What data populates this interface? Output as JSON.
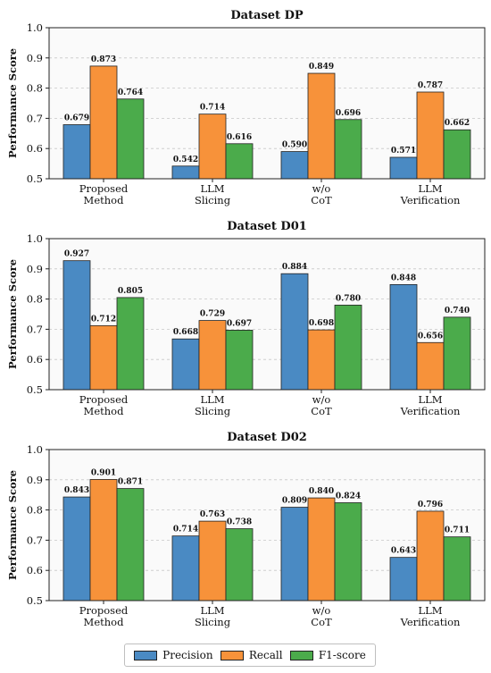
{
  "colors": {
    "precision": "#4a8ac3",
    "recall": "#f7923a",
    "f1": "#4bab4b"
  },
  "legend": [
    {
      "label": "Precision",
      "color": "#4a8ac3"
    },
    {
      "label": "Recall",
      "color": "#f7923a"
    },
    {
      "label": "F1-score",
      "color": "#4bab4b"
    }
  ],
  "chart_data": [
    {
      "type": "bar",
      "title": "Dataset DP",
      "ylabel": "Performance Score",
      "ylim": [
        0.5,
        1.0
      ],
      "yticks": [
        "0.5",
        "0.6",
        "0.7",
        "0.8",
        "0.9",
        "1.0"
      ],
      "categories": [
        [
          "Proposed",
          "Method"
        ],
        [
          "LLM",
          "Slicing"
        ],
        [
          "w/o",
          "CoT"
        ],
        [
          "LLM",
          "Verification"
        ]
      ],
      "series": [
        {
          "name": "Precision",
          "values": [
            0.679,
            0.542,
            0.59,
            0.571
          ],
          "labels": [
            "0.679",
            "0.542",
            "0.590",
            "0.571"
          ]
        },
        {
          "name": "Recall",
          "values": [
            0.873,
            0.714,
            0.849,
            0.787
          ],
          "labels": [
            "0.873",
            "0.714",
            "0.849",
            "0.787"
          ]
        },
        {
          "name": "F1-score",
          "values": [
            0.764,
            0.616,
            0.696,
            0.662
          ],
          "labels": [
            "0.764",
            "0.616",
            "0.696",
            "0.662"
          ]
        }
      ],
      "grid": true
    },
    {
      "type": "bar",
      "title": "Dataset D01",
      "ylabel": "Performance Score",
      "ylim": [
        0.5,
        1.0
      ],
      "yticks": [
        "0.5",
        "0.6",
        "0.7",
        "0.8",
        "0.9",
        "1.0"
      ],
      "categories": [
        [
          "Proposed",
          "Method"
        ],
        [
          "LLM",
          "Slicing"
        ],
        [
          "w/o",
          "CoT"
        ],
        [
          "LLM",
          "Verification"
        ]
      ],
      "series": [
        {
          "name": "Precision",
          "values": [
            0.927,
            0.668,
            0.884,
            0.848
          ],
          "labels": [
            "0.927",
            "0.668",
            "0.884",
            "0.848"
          ]
        },
        {
          "name": "Recall",
          "values": [
            0.712,
            0.729,
            0.698,
            0.656
          ],
          "labels": [
            "0.712",
            "0.729",
            "0.698",
            "0.656"
          ]
        },
        {
          "name": "F1-score",
          "values": [
            0.805,
            0.697,
            0.78,
            0.74
          ],
          "labels": [
            "0.805",
            "0.697",
            "0.780",
            "0.740"
          ]
        }
      ],
      "grid": true
    },
    {
      "type": "bar",
      "title": "Dataset D02",
      "ylabel": "Performance Score",
      "ylim": [
        0.5,
        1.0
      ],
      "yticks": [
        "0.5",
        "0.6",
        "0.7",
        "0.8",
        "0.9",
        "1.0"
      ],
      "categories": [
        [
          "Proposed",
          "Method"
        ],
        [
          "LLM",
          "Slicing"
        ],
        [
          "w/o",
          "CoT"
        ],
        [
          "LLM",
          "Verification"
        ]
      ],
      "series": [
        {
          "name": "Precision",
          "values": [
            0.843,
            0.714,
            0.809,
            0.643
          ],
          "labels": [
            "0.843",
            "0.714",
            "0.809",
            "0.643"
          ]
        },
        {
          "name": "Recall",
          "values": [
            0.901,
            0.763,
            0.84,
            0.796
          ],
          "labels": [
            "0.901",
            "0.763",
            "0.840",
            "0.796"
          ]
        },
        {
          "name": "F1-score",
          "values": [
            0.871,
            0.738,
            0.824,
            0.711
          ],
          "labels": [
            "0.871",
            "0.738",
            "0.824",
            "0.711"
          ]
        }
      ],
      "grid": true
    }
  ]
}
